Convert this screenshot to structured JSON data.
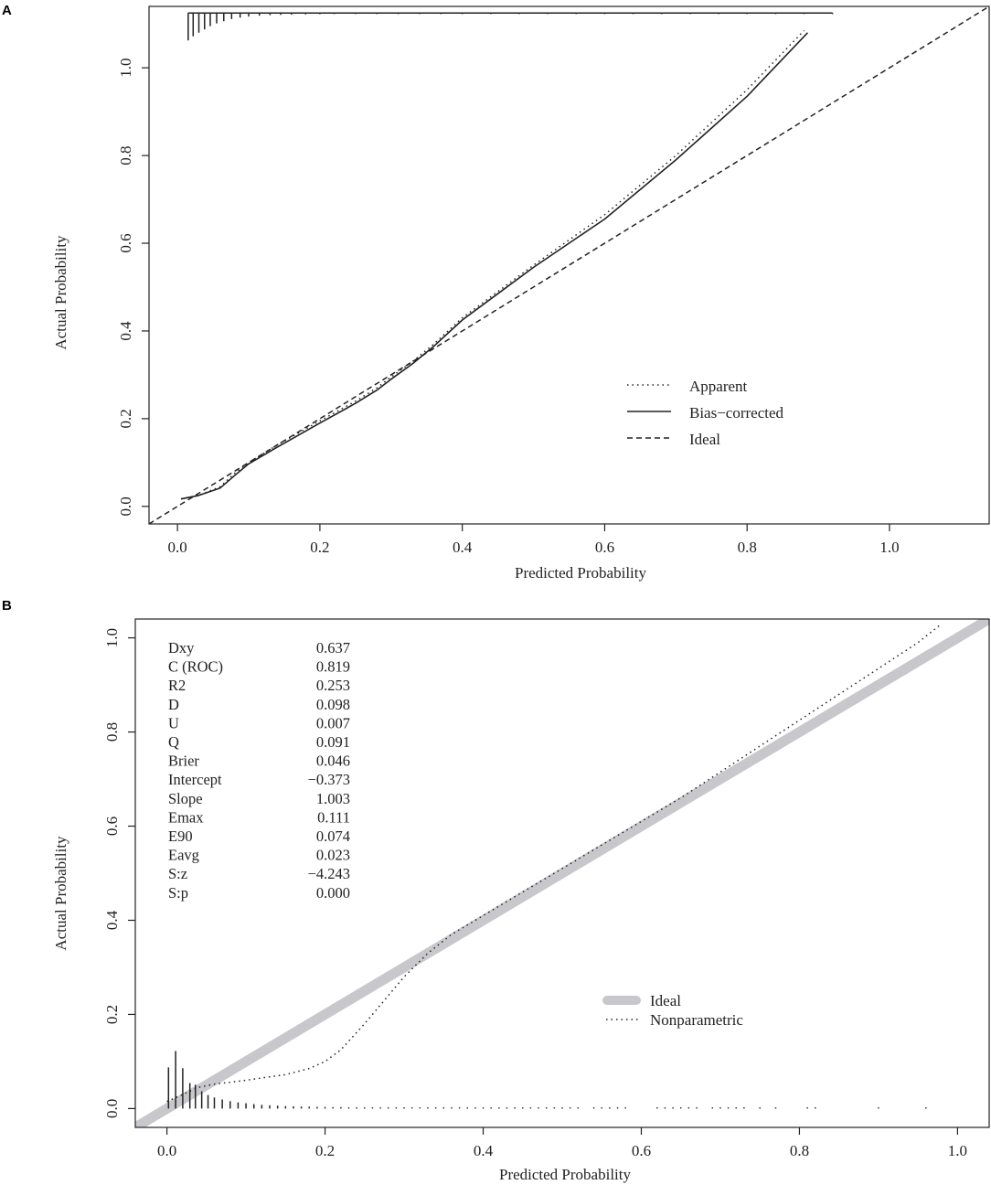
{
  "chart_data": [
    {
      "type": "line",
      "panel": "A",
      "xlabel": "Predicted Probability",
      "ylabel": "Actual Probability",
      "xlim": [
        -0.04,
        1.14
      ],
      "ylim": [
        -0.04,
        1.14
      ],
      "x_ticks": [
        0.0,
        0.2,
        0.4,
        0.6,
        0.8,
        1.0
      ],
      "x_tick_labels": [
        "0.0",
        "0.2",
        "0.4",
        "0.6",
        "0.8",
        "1.0"
      ],
      "y_ticks": [
        0.0,
        0.2,
        0.4,
        0.6,
        0.8,
        1.0
      ],
      "y_tick_labels": [
        "0.0",
        "0.2",
        "0.4",
        "0.6",
        "0.8",
        "1.0"
      ],
      "legend_position": "bottom-right",
      "series": [
        {
          "name": "Apparent",
          "style": "dotted",
          "x": [
            0.005,
            0.03,
            0.06,
            0.08,
            0.1,
            0.14,
            0.2,
            0.25,
            0.28,
            0.3,
            0.33,
            0.36,
            0.4,
            0.45,
            0.5,
            0.6,
            0.7,
            0.8,
            0.88
          ],
          "y": [
            0.017,
            0.025,
            0.045,
            0.075,
            0.1,
            0.14,
            0.195,
            0.24,
            0.27,
            0.295,
            0.33,
            0.37,
            0.43,
            0.49,
            0.55,
            0.665,
            0.8,
            0.95,
            1.085
          ]
        },
        {
          "name": "Bias−corrected",
          "style": "solid",
          "x": [
            0.005,
            0.03,
            0.06,
            0.08,
            0.1,
            0.14,
            0.2,
            0.25,
            0.28,
            0.3,
            0.33,
            0.36,
            0.4,
            0.45,
            0.5,
            0.6,
            0.7,
            0.8,
            0.885
          ],
          "y": [
            0.017,
            0.025,
            0.042,
            0.07,
            0.097,
            0.135,
            0.19,
            0.235,
            0.265,
            0.29,
            0.325,
            0.365,
            0.425,
            0.485,
            0.545,
            0.655,
            0.79,
            0.935,
            1.08
          ]
        },
        {
          "name": "Ideal",
          "style": "dashed",
          "x": [
            -0.04,
            1.14
          ],
          "y": [
            -0.04,
            1.14
          ]
        }
      ],
      "rug": {
        "side": "top",
        "x": [
          0.015,
          0.022,
          0.03,
          0.038,
          0.046,
          0.055,
          0.065,
          0.076,
          0.088,
          0.1,
          0.115,
          0.13,
          0.145,
          0.16,
          0.18,
          0.2,
          0.22,
          0.25,
          0.28,
          0.31,
          0.34,
          0.37,
          0.4,
          0.44,
          0.48,
          0.52,
          0.56,
          0.6,
          0.64,
          0.68,
          0.72,
          0.76,
          0.8,
          0.84,
          0.88,
          0.92
        ],
        "heights": [
          1,
          0.85,
          0.72,
          0.6,
          0.48,
          0.38,
          0.3,
          0.22,
          0.17,
          0.13,
          0.1,
          0.08,
          0.07,
          0.06,
          0.05,
          0.045,
          0.04,
          0.035,
          0.03,
          0.03,
          0.03,
          0.03,
          0.03,
          0.03,
          0.03,
          0.03,
          0.03,
          0.03,
          0.03,
          0.03,
          0.03,
          0.03,
          0.03,
          0.03,
          0.03,
          0.03
        ]
      }
    },
    {
      "type": "line",
      "panel": "B",
      "xlabel": "Predicted Probability",
      "ylabel": "Actual Probability",
      "xlim": [
        -0.04,
        1.04
      ],
      "ylim": [
        -0.04,
        1.04
      ],
      "x_ticks": [
        0.0,
        0.2,
        0.4,
        0.6,
        0.8,
        1.0
      ],
      "x_tick_labels": [
        "0.0",
        "0.2",
        "0.4",
        "0.6",
        "0.8",
        "1.0"
      ],
      "y_ticks": [
        0.0,
        0.2,
        0.4,
        0.6,
        0.8,
        1.0
      ],
      "y_tick_labels": [
        "0.0",
        "0.2",
        "0.4",
        "0.6",
        "0.8",
        "1.0"
      ],
      "legend_position": "bottom-right",
      "series": [
        {
          "name": "Ideal",
          "style": "thick-gray",
          "x": [
            -0.04,
            1.04
          ],
          "y": [
            -0.04,
            1.04
          ]
        },
        {
          "name": "Nonparametric",
          "style": "dotted",
          "x": [
            0.0,
            0.02,
            0.04,
            0.06,
            0.08,
            0.1,
            0.12,
            0.15,
            0.18,
            0.2,
            0.22,
            0.25,
            0.28,
            0.3,
            0.33,
            0.36,
            0.39,
            0.42,
            0.46,
            0.5,
            0.55,
            0.6,
            0.65,
            0.7,
            0.75,
            0.8,
            0.85,
            0.9,
            0.95,
            0.98
          ],
          "y": [
            0.015,
            0.03,
            0.045,
            0.052,
            0.056,
            0.06,
            0.065,
            0.072,
            0.085,
            0.1,
            0.125,
            0.18,
            0.24,
            0.28,
            0.33,
            0.37,
            0.4,
            0.43,
            0.47,
            0.51,
            0.56,
            0.61,
            0.66,
            0.715,
            0.77,
            0.825,
            0.88,
            0.935,
            0.99,
            1.03
          ]
        }
      ],
      "rug": {
        "side": "bottom",
        "x": [
          0.002,
          0.011,
          0.02,
          0.029,
          0.036,
          0.044,
          0.052,
          0.06,
          0.07,
          0.08,
          0.09,
          0.1,
          0.11,
          0.12,
          0.13,
          0.14,
          0.15,
          0.16,
          0.17,
          0.18,
          0.19,
          0.2,
          0.21,
          0.22,
          0.23,
          0.24,
          0.25,
          0.26,
          0.27,
          0.28,
          0.29,
          0.3,
          0.31,
          0.32,
          0.33,
          0.34,
          0.35,
          0.36,
          0.37,
          0.38,
          0.39,
          0.4,
          0.41,
          0.42,
          0.43,
          0.44,
          0.45,
          0.46,
          0.47,
          0.48,
          0.49,
          0.5,
          0.51,
          0.52,
          0.54,
          0.55,
          0.56,
          0.57,
          0.58,
          0.62,
          0.63,
          0.64,
          0.65,
          0.66,
          0.67,
          0.69,
          0.7,
          0.71,
          0.72,
          0.73,
          0.75,
          0.77,
          0.81,
          0.82,
          0.9,
          0.96
        ],
        "heights": [
          1,
          1.4,
          0.98,
          0.62,
          0.58,
          0.42,
          0.33,
          0.27,
          0.22,
          0.18,
          0.15,
          0.13,
          0.11,
          0.09,
          0.08,
          0.07,
          0.06,
          0.055,
          0.05,
          0.045,
          0.04,
          0.04,
          0.035,
          0.035,
          0.03,
          0.03,
          0.03,
          0.03,
          0.03,
          0.03,
          0.03,
          0.03,
          0.03,
          0.03,
          0.03,
          0.03,
          0.03,
          0.03,
          0.03,
          0.03,
          0.03,
          0.03,
          0.03,
          0.03,
          0.03,
          0.03,
          0.03,
          0.03,
          0.03,
          0.03,
          0.03,
          0.03,
          0.03,
          0.03,
          0.03,
          0.03,
          0.03,
          0.03,
          0.03,
          0.03,
          0.03,
          0.03,
          0.03,
          0.03,
          0.03,
          0.03,
          0.03,
          0.03,
          0.03,
          0.03,
          0.03,
          0.03,
          0.03,
          0.03,
          0.03,
          0.03
        ]
      },
      "stats": [
        {
          "label": "Dxy",
          "value": "0.637"
        },
        {
          "label": "C (ROC)",
          "value": "0.819"
        },
        {
          "label": "R2",
          "value": "0.253"
        },
        {
          "label": "D",
          "value": "0.098"
        },
        {
          "label": "U",
          "value": "0.007"
        },
        {
          "label": "Q",
          "value": "0.091"
        },
        {
          "label": "Brier",
          "value": "0.046"
        },
        {
          "label": "Intercept",
          "value": "−0.373"
        },
        {
          "label": "Slope",
          "value": "1.003"
        },
        {
          "label": "Emax",
          "value": "0.111"
        },
        {
          "label": "E90",
          "value": "0.074"
        },
        {
          "label": "Eavg",
          "value": "0.023"
        },
        {
          "label": "S:z",
          "value": "−4.243"
        },
        {
          "label": "S:p",
          "value": "0.000"
        }
      ]
    }
  ],
  "panels": {
    "a": {
      "letter": "A"
    },
    "b": {
      "letter": "B"
    }
  },
  "colors": {
    "ink": "#222222",
    "ideal_gray": "#c8c8cc"
  }
}
